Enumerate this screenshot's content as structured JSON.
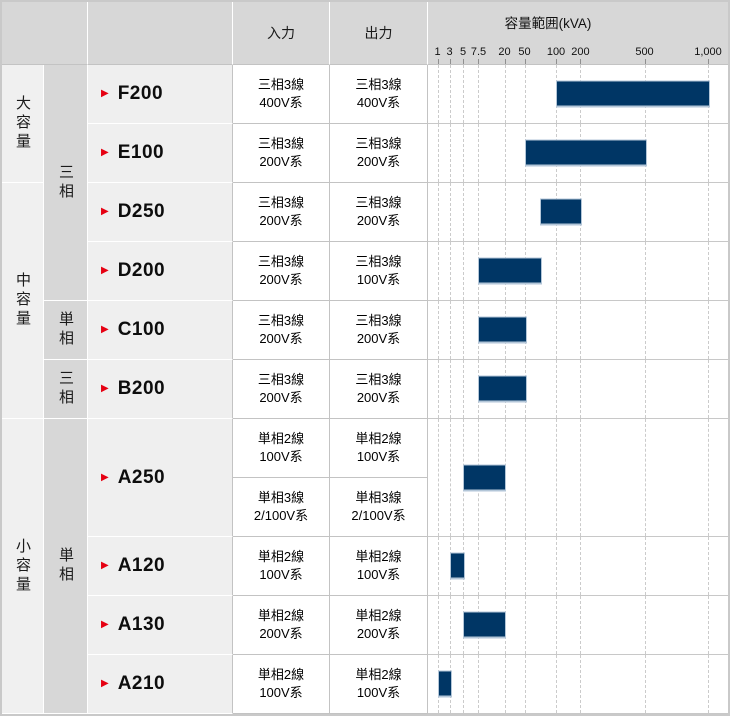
{
  "header": {
    "corner": "",
    "model_header": "",
    "input": "入力",
    "output": "出力"
  },
  "capacity_groups": [
    {
      "label": "大容量",
      "row_span": 2
    },
    {
      "label": "中容量",
      "row_span": 4
    },
    {
      "label": "小容量",
      "row_span": 5
    }
  ],
  "phase_groups": [
    {
      "label": "三相",
      "row_span": 4
    },
    {
      "label": "単相",
      "row_span": 1
    },
    {
      "label": "三相",
      "row_span": 1
    },
    {
      "label": "単相",
      "row_span": 5
    }
  ],
  "products": [
    {
      "model": "F200",
      "io": [
        {
          "input": [
            "三相3線",
            "400V系"
          ],
          "output": [
            "三相3線",
            "400V系"
          ]
        }
      ]
    },
    {
      "model": "E100",
      "io": [
        {
          "input": [
            "三相3線",
            "200V系"
          ],
          "output": [
            "三相3線",
            "200V系"
          ]
        }
      ]
    },
    {
      "model": "D250",
      "io": [
        {
          "input": [
            "三相3線",
            "200V系"
          ],
          "output": [
            "三相3線",
            "200V系"
          ]
        }
      ]
    },
    {
      "model": "D200",
      "io": [
        {
          "input": [
            "三相3線",
            "200V系"
          ],
          "output": [
            "三相3線",
            "100V系"
          ]
        }
      ]
    },
    {
      "model": "C100",
      "io": [
        {
          "input": [
            "三相3線",
            "200V系"
          ],
          "output": [
            "三相3線",
            "200V系"
          ]
        }
      ]
    },
    {
      "model": "B200",
      "io": [
        {
          "input": [
            "三相3線",
            "200V系"
          ],
          "output": [
            "三相3線",
            "200V系"
          ]
        }
      ]
    },
    {
      "model": "A250",
      "io": [
        {
          "input": [
            "単相2線",
            "100V系"
          ],
          "output": [
            "単相2線",
            "100V系"
          ]
        },
        {
          "input": [
            "単相3線",
            "2/100V系"
          ],
          "output": [
            "単相3線",
            "2/100V系"
          ]
        }
      ]
    },
    {
      "model": "A120",
      "io": [
        {
          "input": [
            "単相2線",
            "100V系"
          ],
          "output": [
            "単相2線",
            "100V系"
          ]
        }
      ]
    },
    {
      "model": "A130",
      "io": [
        {
          "input": [
            "単相2線",
            "200V系"
          ],
          "output": [
            "単相2線",
            "200V系"
          ]
        }
      ]
    },
    {
      "model": "A210",
      "io": [
        {
          "input": [
            "単相2線",
            "100V系"
          ],
          "output": [
            "単相2線",
            "100V系"
          ]
        }
      ]
    }
  ],
  "chart_data": {
    "type": "bar",
    "orientation": "horizontal-range",
    "title": "容量範囲(kVA)",
    "unit": "kVA",
    "axis": {
      "scale": "custom-logarithmic-like",
      "grid": true,
      "ticks": [
        {
          "label": "1",
          "value": 1,
          "pct": 3.17
        },
        {
          "label": "3",
          "value": 3,
          "pct": 7.17
        },
        {
          "label": "5",
          "value": 5,
          "pct": 11.67
        },
        {
          "label": "7.5",
          "value": 7.5,
          "pct": 16.83
        },
        {
          "label": "20",
          "value": 20,
          "pct": 25.5
        },
        {
          "label": "50",
          "value": 50,
          "pct": 32.17
        },
        {
          "label": "100",
          "value": 100,
          "pct": 42.67
        },
        {
          "label": "200",
          "value": 200,
          "pct": 50.83
        },
        {
          "label": "500",
          "value": 500,
          "pct": 72.17
        },
        {
          "label": "1,000",
          "value": 1000,
          "pct": 93.33
        }
      ]
    },
    "bars": [
      {
        "model": "F200",
        "from_kva": 100,
        "to_kva": 1000
      },
      {
        "model": "E100",
        "from_kva": 50,
        "to_kva": 500
      },
      {
        "model": "D250",
        "from_kva": 75,
        "to_kva": 200
      },
      {
        "model": "D200",
        "from_kva": 7.5,
        "to_kva": 75
      },
      {
        "model": "C100",
        "from_kva": 7.5,
        "to_kva": 50
      },
      {
        "model": "B200",
        "from_kva": 7.5,
        "to_kva": 50
      },
      {
        "model": "A250",
        "from_kva": 5,
        "to_kva": 20
      },
      {
        "model": "A120",
        "from_kva": 3,
        "to_kva": 5
      },
      {
        "model": "A130",
        "from_kva": 5,
        "to_kva": 20
      },
      {
        "model": "A210",
        "from_kva": 1,
        "to_kva": 3
      }
    ]
  },
  "icons": {
    "model_marker": "▶"
  },
  "colors": {
    "bar": "#003665",
    "bar_edge": "#b3c6d8",
    "accent_red": "#e60012",
    "header_gray": "#d7d7d7",
    "group_light": "#f0f0f0",
    "grid_dash": "#cbcbcb"
  }
}
